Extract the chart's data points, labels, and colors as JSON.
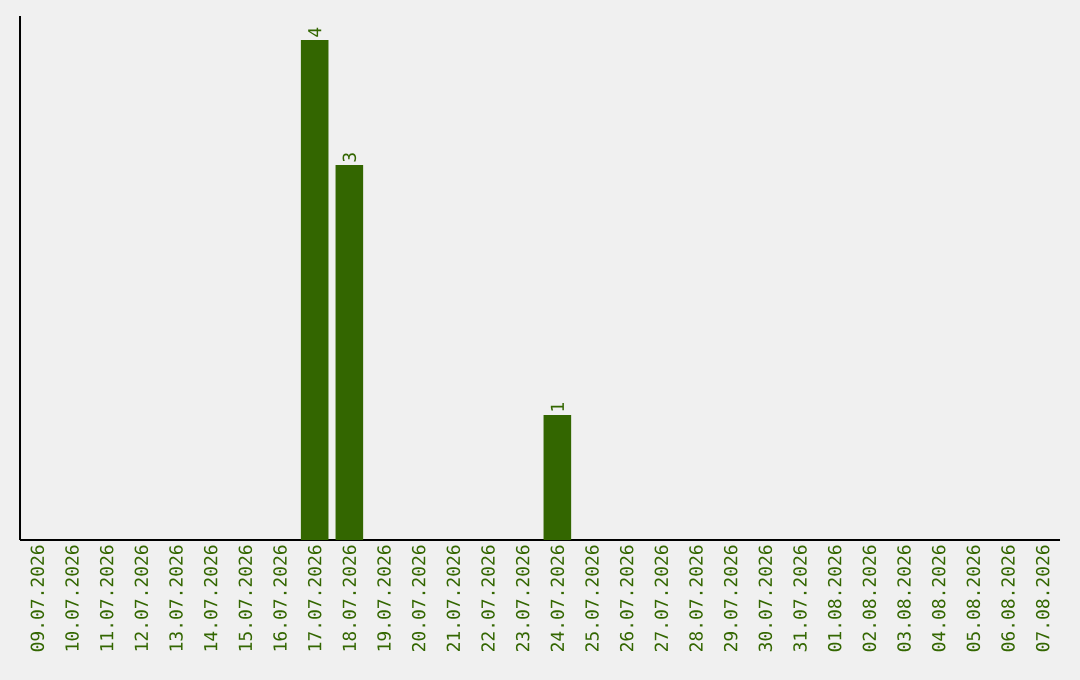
{
  "chart_data": {
    "type": "bar",
    "categories": [
      "09.07.2026",
      "10.07.2026",
      "11.07.2026",
      "12.07.2026",
      "13.07.2026",
      "14.07.2026",
      "15.07.2026",
      "16.07.2026",
      "17.07.2026",
      "18.07.2026",
      "19.07.2026",
      "20.07.2026",
      "21.07.2026",
      "22.07.2026",
      "23.07.2026",
      "24.07.2026",
      "25.07.2026",
      "26.07.2026",
      "27.07.2026",
      "28.07.2026",
      "29.07.2026",
      "30.07.2026",
      "31.07.2026",
      "01.08.2026",
      "02.08.2026",
      "03.08.2026",
      "04.08.2026",
      "05.08.2026",
      "06.08.2026",
      "07.08.2026"
    ],
    "values": [
      0,
      0,
      0,
      0,
      0,
      0,
      0,
      0,
      4,
      3,
      0,
      0,
      0,
      0,
      0,
      1,
      0,
      0,
      0,
      0,
      0,
      0,
      0,
      0,
      0,
      0,
      0,
      0,
      0,
      0
    ],
    "value_labels": [
      null,
      null,
      null,
      null,
      null,
      null,
      null,
      null,
      "4",
      "3",
      null,
      null,
      null,
      null,
      null,
      "1",
      null,
      null,
      null,
      null,
      null,
      null,
      null,
      null,
      null,
      null,
      null,
      null,
      null,
      null
    ],
    "color": "#336600",
    "tick_labels": "x"
  }
}
